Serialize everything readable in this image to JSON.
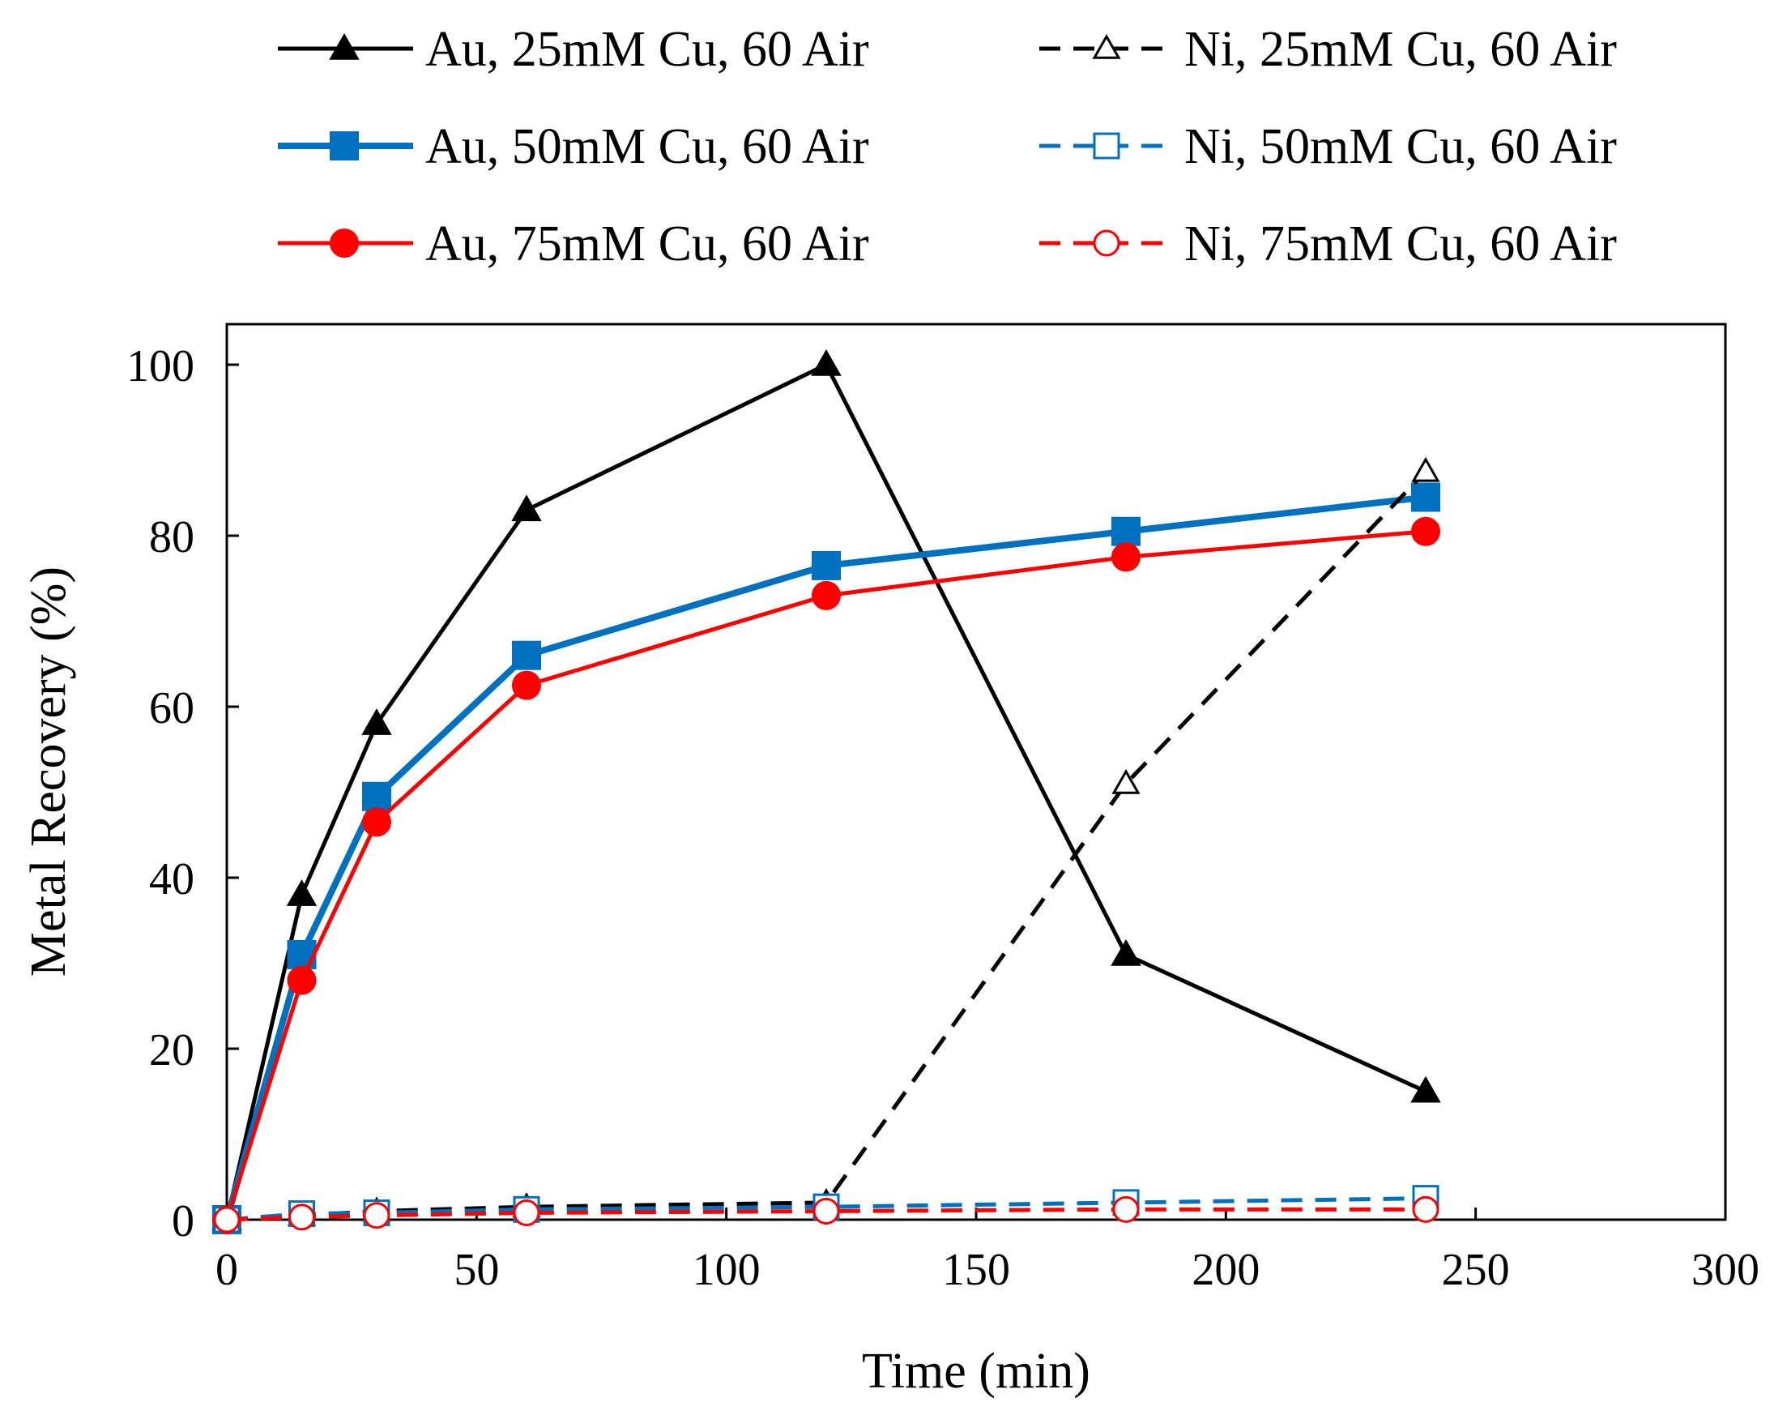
{
  "chart_data": {
    "type": "line",
    "title": "",
    "xlabel": "Time (min)",
    "ylabel": "Metal Recovery (%)",
    "xlim": [
      0,
      300
    ],
    "ylim": [
      0,
      100
    ],
    "xticks": [
      0,
      50,
      100,
      150,
      200,
      250,
      300
    ],
    "yticks": [
      0,
      20,
      40,
      60,
      80,
      100
    ],
    "grid": false,
    "legend_position": "top",
    "series": [
      {
        "name": "Au, 25mM Cu, 60 Air",
        "color": "#000000",
        "dashed": false,
        "marker": "triangle",
        "filled": true,
        "x": [
          0,
          15,
          30,
          60,
          120,
          180,
          240
        ],
        "y": [
          0,
          38,
          58,
          83,
          100,
          31,
          15
        ]
      },
      {
        "name": "Au, 50mM Cu, 60 Air",
        "color": "#0070C0",
        "dashed": false,
        "marker": "square",
        "filled": true,
        "x": [
          0,
          15,
          30,
          60,
          120,
          180,
          240
        ],
        "y": [
          0,
          31,
          49.5,
          66,
          76.5,
          80.5,
          84.5
        ]
      },
      {
        "name": "Au, 75mM Cu, 60 Air",
        "color": "#FF0000",
        "dashed": false,
        "marker": "circle",
        "filled": true,
        "x": [
          0,
          15,
          30,
          60,
          120,
          180,
          240
        ],
        "y": [
          0,
          28,
          46.5,
          62.5,
          73,
          77.5,
          80.5
        ]
      },
      {
        "name": "Ni, 25mM Cu, 60 Air",
        "color": "#000000",
        "dashed": true,
        "marker": "triangle",
        "filled": false,
        "x": [
          0,
          15,
          30,
          60,
          120,
          180,
          240
        ],
        "y": [
          0,
          0.5,
          1,
          1.5,
          2,
          51,
          87.5
        ]
      },
      {
        "name": "Ni, 50mM Cu, 60 Air",
        "color": "#0070C0",
        "dashed": true,
        "marker": "square",
        "filled": false,
        "x": [
          0,
          15,
          30,
          60,
          120,
          180,
          240
        ],
        "y": [
          0,
          0.7,
          0.8,
          1.2,
          1.5,
          2,
          2.5
        ]
      },
      {
        "name": "Ni, 75mM Cu, 60 Air",
        "color": "#FF0000",
        "dashed": true,
        "marker": "circle",
        "filled": false,
        "x": [
          0,
          15,
          30,
          60,
          120,
          180,
          240
        ],
        "y": [
          0,
          0.3,
          0.5,
          0.8,
          1,
          1.2,
          1.2
        ]
      }
    ]
  }
}
